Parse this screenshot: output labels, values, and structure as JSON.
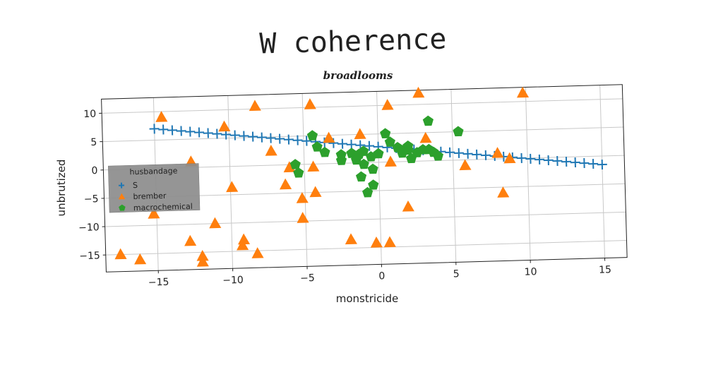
{
  "chart_data": {
    "type": "scatter",
    "title": "W coherence",
    "subtitle": "broadlooms",
    "xlabel": "monstricide",
    "ylabel": "unbrutized",
    "xlim": [
      -18.5,
      16.5
    ],
    "ylim": [
      -18,
      12.5
    ],
    "xticks": [
      -15,
      -10,
      -5,
      0,
      5,
      10,
      15
    ],
    "yticks": [
      -15,
      -10,
      -5,
      0,
      5,
      10
    ],
    "grid": true,
    "legend": {
      "title": "husbandage",
      "placement": "center-left"
    },
    "series": [
      {
        "name": "S",
        "marker": "plus",
        "color": "#1f77b4",
        "x": [
          -15.0,
          -14.4,
          -13.8,
          -13.2,
          -12.6,
          -12.0,
          -11.4,
          -10.8,
          -10.2,
          -9.6,
          -9.0,
          -8.4,
          -7.8,
          -7.2,
          -6.6,
          -6.0,
          -5.4,
          -4.8,
          -4.2,
          -3.6,
          -3.0,
          -2.4,
          -1.8,
          -1.2,
          -0.6,
          0.0,
          0.6,
          1.2,
          1.8,
          2.4,
          3.0,
          3.6,
          4.2,
          4.8,
          5.4,
          6.0,
          6.6,
          7.2,
          7.8,
          8.4,
          9.0,
          9.6,
          10.2,
          10.8,
          11.4,
          12.0,
          12.6,
          13.2,
          13.8,
          14.4,
          15.0
        ],
        "y": [
          7.0,
          6.83,
          6.66,
          6.49,
          6.32,
          6.15,
          5.98,
          5.81,
          5.64,
          5.47,
          5.3,
          5.13,
          4.96,
          4.79,
          4.62,
          4.45,
          4.28,
          4.11,
          3.94,
          3.77,
          3.6,
          3.43,
          3.26,
          3.09,
          2.92,
          2.75,
          2.58,
          2.41,
          2.24,
          2.07,
          1.9,
          1.73,
          1.56,
          1.39,
          1.22,
          1.05,
          0.88,
          0.71,
          0.54,
          0.37,
          0.2,
          0.03,
          -0.14,
          -0.31,
          -0.48,
          -0.65,
          -0.82,
          -0.99,
          -1.16,
          -1.33,
          -1.5
        ]
      },
      {
        "name": "brember",
        "marker": "triangle",
        "color": "#ff7f0e",
        "x": [
          -14.5,
          -8.2,
          -10.3,
          -4.5,
          0.7,
          2.8,
          9.8,
          -12.6,
          -7.2,
          -6.0,
          -4.4,
          -1.2,
          3.2,
          -3.3,
          -9.9,
          -15.2,
          -11.1,
          -4.3,
          -6.3,
          -5.2,
          -5.2,
          0.8,
          5.8,
          8.0,
          8.8,
          1.9,
          8.3,
          -12.8,
          -9.2,
          -9.3,
          -2.0,
          -17.5,
          -16.2,
          -12.0,
          -12.0,
          -8.3,
          -0.3,
          0.6
        ],
        "y": [
          9.0,
          10.5,
          7.0,
          10.5,
          10.0,
          12.0,
          11.5,
          1.0,
          2.5,
          -0.5,
          -0.5,
          5.0,
          4.0,
          4.5,
          -3.7,
          -8.0,
          -10.0,
          -5.0,
          -3.5,
          -6.0,
          -9.5,
          0.0,
          -1.0,
          1.0,
          0.0,
          -8.0,
          -6.0,
          -13.0,
          -13.0,
          -14.0,
          -13.5,
          -15.0,
          -16.0,
          -15.7,
          -16.7,
          -15.5,
          -14.2,
          -14.2
        ]
      },
      {
        "name": "macrochemical",
        "marker": "pentagon",
        "color": "#2ca02c",
        "x": [
          -4.4,
          -4.1,
          -3.6,
          -2.5,
          -2.5,
          -1.8,
          -1.5,
          -1.0,
          -1.2,
          -0.8,
          -0.4,
          -0.4,
          -5.4,
          -5.6,
          0.5,
          0.8,
          1.3,
          1.6,
          2.0,
          2.2,
          2.6,
          3.0,
          3.4,
          3.7,
          4.0,
          3.4,
          5.4,
          -1.3,
          -1.0,
          -0.5,
          0.0,
          1.7,
          2.0
        ],
        "y": [
          5.0,
          3.0,
          2.0,
          1.5,
          0.5,
          1.7,
          0.5,
          -0.3,
          -2.5,
          -5.3,
          -4.0,
          -1.2,
          -1.5,
          0.0,
          5.0,
          3.5,
          2.5,
          1.5,
          2.7,
          0.5,
          1.5,
          2.0,
          2.0,
          1.5,
          0.8,
          7.0,
          5.0,
          1.5,
          2.0,
          1.0,
          1.5,
          2.0,
          2.0
        ]
      }
    ]
  }
}
